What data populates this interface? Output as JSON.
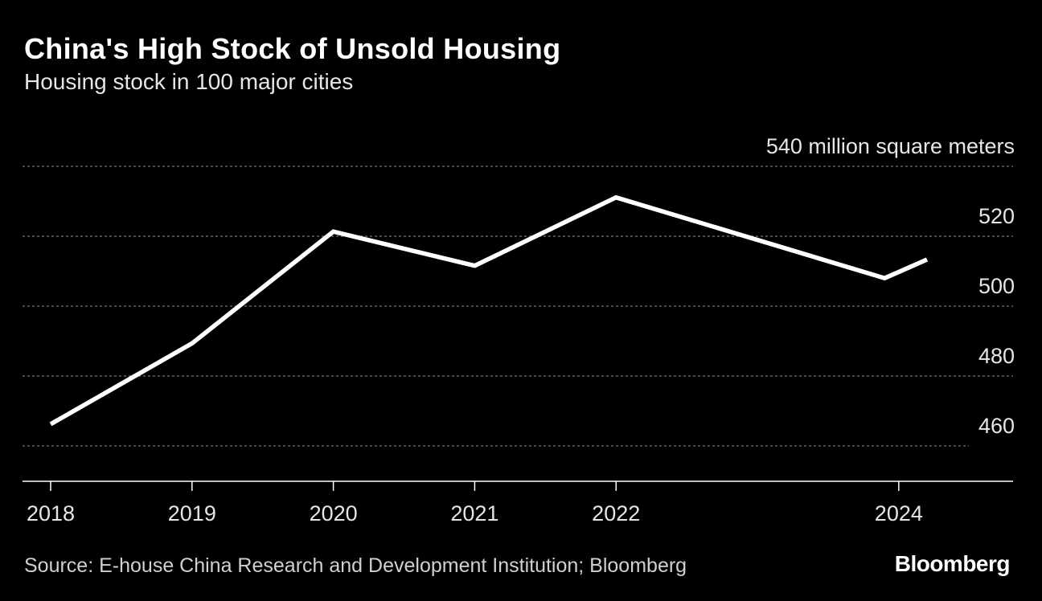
{
  "header": {
    "title": "China's High Stock of Unsold Housing",
    "subtitle": "Housing stock in 100 major cities"
  },
  "footer": {
    "source": "Source: E-house China Research and Development Institution; Bloomberg",
    "brand": "Bloomberg"
  },
  "chart_data": {
    "type": "line",
    "title": "China's High Stock of Unsold Housing",
    "subtitle": "Housing stock in 100 major cities",
    "ylabel": "",
    "unit_label": "540 million square meters",
    "ylim": [
      450,
      540
    ],
    "yticks": [
      460,
      480,
      500,
      520,
      540
    ],
    "xticks": [
      "2018",
      "2019",
      "2020",
      "2021",
      "2022",
      "2024"
    ],
    "xlim": [
      2018,
      2024.2
    ],
    "grid": true,
    "series": [
      {
        "color": "#ffffff",
        "x": [
          2018,
          2019,
          2020,
          2021,
          2022,
          2023.9,
          2024.2
        ],
        "y": [
          457,
          483,
          519,
          508,
          530,
          504,
          510
        ]
      }
    ]
  },
  "colors": {
    "background": "#000000",
    "line": "#ffffff",
    "grid": "#777777",
    "text": "#ffffff"
  }
}
